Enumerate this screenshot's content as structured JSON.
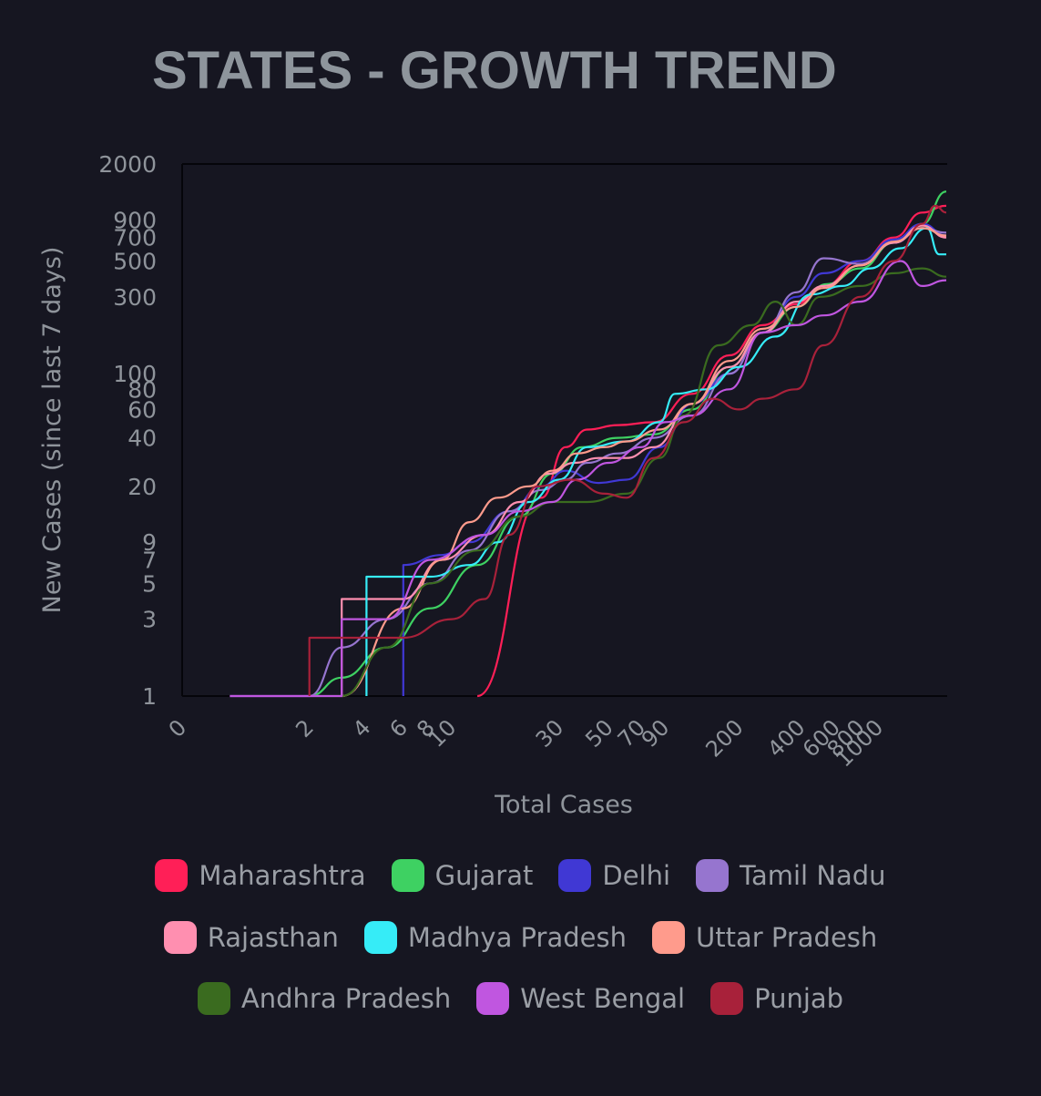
{
  "title": "STATES - GROWTH TREND",
  "chart_data": {
    "type": "line",
    "xlabel": "Total Cases",
    "ylabel": "New Cases (since last 7 days)",
    "x_scale": "log",
    "y_scale": "log",
    "xlim": [
      1,
      2400
    ],
    "ylim": [
      1,
      2000
    ],
    "x_ticks": [
      "0",
      "2",
      "4",
      "6",
      "8",
      "10",
      "30",
      "50",
      "70",
      "90",
      "200",
      "400",
      "600",
      "800",
      "1000"
    ],
    "y_ticks": [
      "1",
      "3",
      "5",
      "7",
      "9",
      "20",
      "40",
      "60",
      "80",
      "100",
      "300",
      "500",
      "700",
      "900",
      "2000"
    ],
    "grid": false,
    "legend_position": "bottom",
    "series": [
      {
        "name": "Maharashtra",
        "color": "#ff1f57",
        "points": [
          [
            13,
            1
          ],
          [
            25,
            17
          ],
          [
            32,
            35
          ],
          [
            40,
            45
          ],
          [
            55,
            48
          ],
          [
            80,
            50
          ],
          [
            120,
            75
          ],
          [
            180,
            130
          ],
          [
            260,
            200
          ],
          [
            380,
            270
          ],
          [
            520,
            350
          ],
          [
            800,
            500
          ],
          [
            1200,
            700
          ],
          [
            1700,
            1000
          ],
          [
            2300,
            1100
          ]
        ]
      },
      {
        "name": "Gujarat",
        "color": "#3ed162",
        "points": [
          [
            2,
            1
          ],
          [
            3,
            1.3
          ],
          [
            5,
            2
          ],
          [
            8,
            3.5
          ],
          [
            13,
            6.5
          ],
          [
            20,
            13
          ],
          [
            28,
            24
          ],
          [
            38,
            35
          ],
          [
            55,
            40
          ],
          [
            80,
            42
          ],
          [
            120,
            60
          ],
          [
            180,
            110
          ],
          [
            260,
            180
          ],
          [
            380,
            260
          ],
          [
            540,
            360
          ],
          [
            800,
            450
          ],
          [
            1200,
            650
          ],
          [
            1700,
            850
          ],
          [
            2300,
            1350
          ]
        ]
      },
      {
        "name": "Delhi",
        "color": "#4038d4",
        "points": [
          [
            6,
            1
          ],
          [
            6,
            6.5
          ],
          [
            9,
            7.5
          ],
          [
            12,
            9
          ],
          [
            18,
            14
          ],
          [
            25,
            20
          ],
          [
            32,
            25
          ],
          [
            45,
            21
          ],
          [
            60,
            22
          ],
          [
            85,
            35
          ],
          [
            120,
            65
          ],
          [
            180,
            100
          ],
          [
            260,
            180
          ],
          [
            380,
            300
          ],
          [
            520,
            420
          ],
          [
            800,
            500
          ],
          [
            1200,
            680
          ],
          [
            1700,
            850
          ],
          [
            2300,
            720
          ]
        ]
      },
      {
        "name": "Tamil Nadu",
        "color": "#9675cf",
        "points": [
          [
            0.5,
            1
          ],
          [
            2,
            1
          ],
          [
            3,
            2
          ],
          [
            5,
            3
          ],
          [
            8,
            5
          ],
          [
            12,
            8
          ],
          [
            18,
            14
          ],
          [
            25,
            19
          ],
          [
            32,
            22
          ],
          [
            40,
            28
          ],
          [
            55,
            32
          ],
          [
            80,
            40
          ],
          [
            120,
            55
          ],
          [
            180,
            100
          ],
          [
            260,
            180
          ],
          [
            380,
            320
          ],
          [
            520,
            520
          ],
          [
            800,
            480
          ],
          [
            1200,
            650
          ],
          [
            1700,
            800
          ],
          [
            2300,
            750
          ]
        ]
      },
      {
        "name": "Rajasthan",
        "color": "#ff8fb0",
        "points": [
          [
            3,
            1
          ],
          [
            3,
            4
          ],
          [
            6,
            4
          ],
          [
            9,
            7
          ],
          [
            14,
            10
          ],
          [
            20,
            16
          ],
          [
            27,
            24
          ],
          [
            35,
            28
          ],
          [
            45,
            30
          ],
          [
            60,
            30
          ],
          [
            80,
            35
          ],
          [
            120,
            65
          ],
          [
            180,
            110
          ],
          [
            260,
            180
          ],
          [
            380,
            280
          ],
          [
            520,
            350
          ],
          [
            800,
            470
          ],
          [
            1200,
            650
          ],
          [
            1700,
            830
          ],
          [
            2300,
            700
          ]
        ]
      },
      {
        "name": "Madhya Pradesh",
        "color": "#36ecf7",
        "points": [
          [
            4,
            1
          ],
          [
            4,
            5.5
          ],
          [
            8,
            5.5
          ],
          [
            12,
            6.5
          ],
          [
            16,
            9
          ],
          [
            22,
            16
          ],
          [
            30,
            22
          ],
          [
            40,
            35
          ],
          [
            60,
            38
          ],
          [
            85,
            50
          ],
          [
            100,
            75
          ],
          [
            140,
            80
          ],
          [
            200,
            110
          ],
          [
            300,
            170
          ],
          [
            450,
            310
          ],
          [
            650,
            350
          ],
          [
            900,
            450
          ],
          [
            1300,
            600
          ],
          [
            1800,
            800
          ],
          [
            2100,
            550
          ],
          [
            2300,
            550
          ]
        ]
      },
      {
        "name": "Uttar Pradesh",
        "color": "#ff9b8c",
        "points": [
          [
            3,
            1
          ],
          [
            6,
            3.5
          ],
          [
            9,
            7
          ],
          [
            12,
            12
          ],
          [
            16,
            17
          ],
          [
            22,
            20
          ],
          [
            28,
            25
          ],
          [
            36,
            32
          ],
          [
            48,
            35
          ],
          [
            60,
            38
          ],
          [
            85,
            45
          ],
          [
            120,
            65
          ],
          [
            180,
            120
          ],
          [
            260,
            190
          ],
          [
            380,
            260
          ],
          [
            520,
            340
          ],
          [
            800,
            470
          ],
          [
            1200,
            660
          ],
          [
            1700,
            800
          ],
          [
            2300,
            720
          ]
        ]
      },
      {
        "name": "Andhra Pradesh",
        "color": "#3a6b1f",
        "points": [
          [
            2,
            1
          ],
          [
            3,
            1
          ],
          [
            5,
            2
          ],
          [
            8,
            5
          ],
          [
            13,
            8
          ],
          [
            20,
            13
          ],
          [
            28,
            16
          ],
          [
            40,
            16
          ],
          [
            60,
            18
          ],
          [
            85,
            30
          ],
          [
            110,
            55
          ],
          [
            160,
            150
          ],
          [
            230,
            200
          ],
          [
            300,
            280
          ],
          [
            380,
            200
          ],
          [
            500,
            300
          ],
          [
            800,
            350
          ],
          [
            1200,
            420
          ],
          [
            1700,
            450
          ],
          [
            2300,
            400
          ]
        ]
      },
      {
        "name": "West Bengal",
        "color": "#c056e0",
        "points": [
          [
            0.5,
            1
          ],
          [
            3,
            1
          ],
          [
            3,
            3
          ],
          [
            5,
            3
          ],
          [
            8,
            7
          ],
          [
            14,
            10
          ],
          [
            20,
            14
          ],
          [
            28,
            16
          ],
          [
            36,
            22
          ],
          [
            50,
            28
          ],
          [
            70,
            35
          ],
          [
            90,
            50
          ],
          [
            120,
            55
          ],
          [
            180,
            80
          ],
          [
            260,
            180
          ],
          [
            380,
            200
          ],
          [
            520,
            230
          ],
          [
            800,
            280
          ],
          [
            1300,
            500
          ],
          [
            1700,
            350
          ],
          [
            2300,
            380
          ]
        ]
      },
      {
        "name": "Punjab",
        "color": "#a8213a",
        "points": [
          [
            2,
            1
          ],
          [
            2,
            2.3
          ],
          [
            6,
            2.3
          ],
          [
            10,
            3
          ],
          [
            14,
            4
          ],
          [
            18,
            10
          ],
          [
            24,
            20
          ],
          [
            34,
            22
          ],
          [
            48,
            18
          ],
          [
            60,
            17
          ],
          [
            80,
            30
          ],
          [
            110,
            50
          ],
          [
            150,
            70
          ],
          [
            200,
            60
          ],
          [
            260,
            70
          ],
          [
            380,
            80
          ],
          [
            520,
            150
          ],
          [
            800,
            300
          ],
          [
            1200,
            500
          ],
          [
            1700,
            850
          ],
          [
            2000,
            1100
          ],
          [
            2300,
            1000
          ]
        ]
      }
    ]
  }
}
